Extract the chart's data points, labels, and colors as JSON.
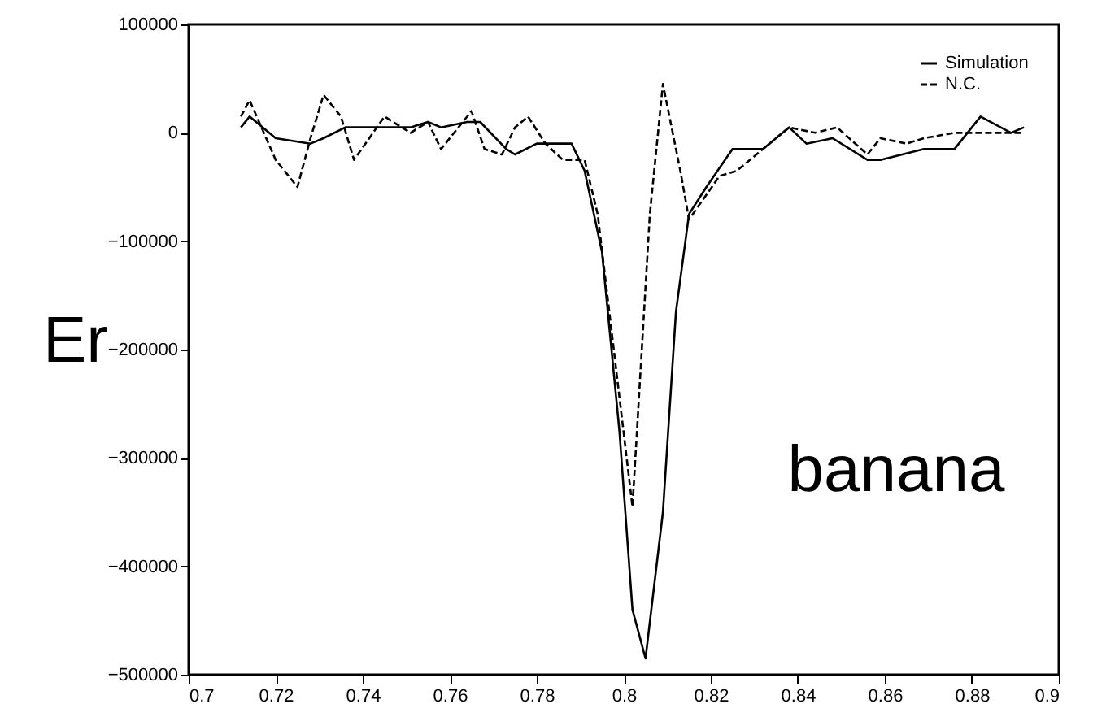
{
  "chart_data": {
    "type": "line",
    "ylabel": "Er",
    "annotations": [
      "banana"
    ],
    "xlim": [
      0.7,
      0.9
    ],
    "xticks": [
      0.7,
      0.72,
      0.74,
      0.76,
      0.78,
      0.8,
      0.82,
      0.84,
      0.86,
      0.88,
      0.9
    ],
    "ylim": [
      -500000,
      100000
    ],
    "yticks": [
      -500000,
      -400000,
      -300000,
      -200000,
      -100000,
      0,
      100000
    ],
    "grid": false,
    "legend": "top right",
    "marker": "none",
    "series": [
      {
        "name": "Simulation",
        "color": "#000000",
        "line_style": "solid",
        "x": [
          0.712,
          0.714,
          0.72,
          0.728,
          0.731,
          0.736,
          0.744,
          0.751,
          0.755,
          0.758,
          0.764,
          0.767,
          0.773,
          0.775,
          0.78,
          0.784,
          0.788,
          0.791,
          0.795,
          0.799,
          0.802,
          0.805,
          0.809,
          0.812,
          0.815,
          0.819,
          0.825,
          0.832,
          0.838,
          0.842,
          0.848,
          0.856,
          0.859,
          0.864,
          0.869,
          0.876,
          0.882,
          0.889,
          0.892
        ],
        "values": [
          5000,
          15000,
          -5000,
          -10000,
          -5000,
          5000,
          5000,
          5000,
          10000,
          5000,
          10000,
          10000,
          -15000,
          -20000,
          -10000,
          -10000,
          -10000,
          -35000,
          -110000,
          -275000,
          -440000,
          -485000,
          -350000,
          -165000,
          -75000,
          -50000,
          -15000,
          -15000,
          5000,
          -10000,
          -5000,
          -25000,
          -25000,
          -20000,
          -15000,
          -15000,
          15000,
          0,
          5000
        ]
      },
      {
        "name": "N.C.",
        "color": "#000000",
        "line_style": "dashed",
        "x": [
          0.712,
          0.714,
          0.72,
          0.725,
          0.728,
          0.731,
          0.735,
          0.738,
          0.745,
          0.751,
          0.755,
          0.758,
          0.765,
          0.768,
          0.772,
          0.775,
          0.778,
          0.782,
          0.786,
          0.791,
          0.794,
          0.802,
          0.806,
          0.809,
          0.813,
          0.815,
          0.822,
          0.826,
          0.832,
          0.838,
          0.844,
          0.849,
          0.856,
          0.859,
          0.865,
          0.869,
          0.876,
          0.881,
          0.889,
          0.892
        ],
        "values": [
          15000,
          30000,
          -25000,
          -50000,
          -5000,
          35000,
          15000,
          -25000,
          15000,
          0,
          10000,
          -15000,
          20000,
          -15000,
          -20000,
          5000,
          15000,
          -10000,
          -25000,
          -25000,
          -75000,
          -345000,
          -75000,
          45000,
          -35000,
          -80000,
          -40000,
          -35000,
          -15000,
          5000,
          0,
          5000,
          -20000,
          -5000,
          -10000,
          -5000,
          0,
          0,
          0,
          0
        ]
      }
    ]
  }
}
